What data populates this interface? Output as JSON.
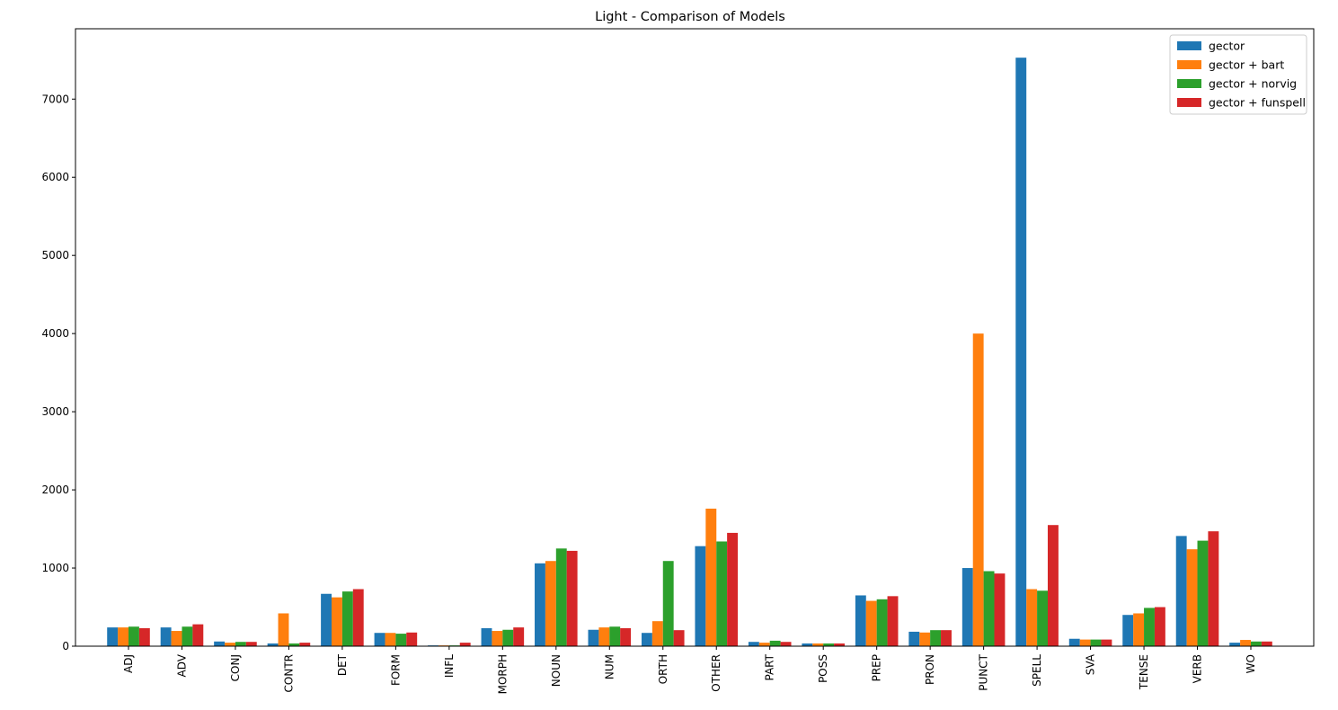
{
  "chart_data": {
    "type": "bar",
    "title": "Light - Comparison of Models",
    "xlabel": "",
    "ylabel": "",
    "ylim": [
      0,
      7900
    ],
    "yticks": [
      0,
      1000,
      2000,
      3000,
      4000,
      5000,
      6000,
      7000
    ],
    "categories": [
      "ADJ",
      "ADV",
      "CONJ",
      "CONTR",
      "DET",
      "FORM",
      "INFL",
      "MORPH",
      "NOUN",
      "NUM",
      "ORTH",
      "OTHER",
      "PART",
      "POSS",
      "PREP",
      "PRON",
      "PUNCT",
      "SPELL",
      "SVA",
      "TENSE",
      "VERB",
      "WO"
    ],
    "series": [
      {
        "name": "gector",
        "color": "#1f77b4",
        "values": [
          240,
          240,
          60,
          35,
          670,
          170,
          10,
          230,
          1060,
          210,
          170,
          1280,
          55,
          35,
          650,
          185,
          1000,
          7530,
          95,
          400,
          1410,
          45
        ]
      },
      {
        "name": "gector + bart",
        "color": "#ff7f0e",
        "values": [
          240,
          195,
          45,
          420,
          625,
          170,
          10,
          195,
          1090,
          240,
          320,
          1760,
          45,
          35,
          580,
          175,
          4000,
          730,
          85,
          420,
          1240,
          80
        ]
      },
      {
        "name": "gector + norvig",
        "color": "#2ca02c",
        "values": [
          250,
          250,
          55,
          35,
          700,
          160,
          10,
          210,
          1250,
          250,
          1090,
          1340,
          70,
          35,
          600,
          205,
          960,
          710,
          85,
          490,
          1350,
          60
        ]
      },
      {
        "name": "gector + funspell",
        "color": "#d62728",
        "values": [
          230,
          280,
          55,
          45,
          730,
          175,
          45,
          240,
          1220,
          230,
          205,
          1450,
          55,
          35,
          640,
          205,
          930,
          1550,
          85,
          500,
          1470,
          60
        ]
      }
    ],
    "grid": false,
    "legend_position": "top-right"
  }
}
